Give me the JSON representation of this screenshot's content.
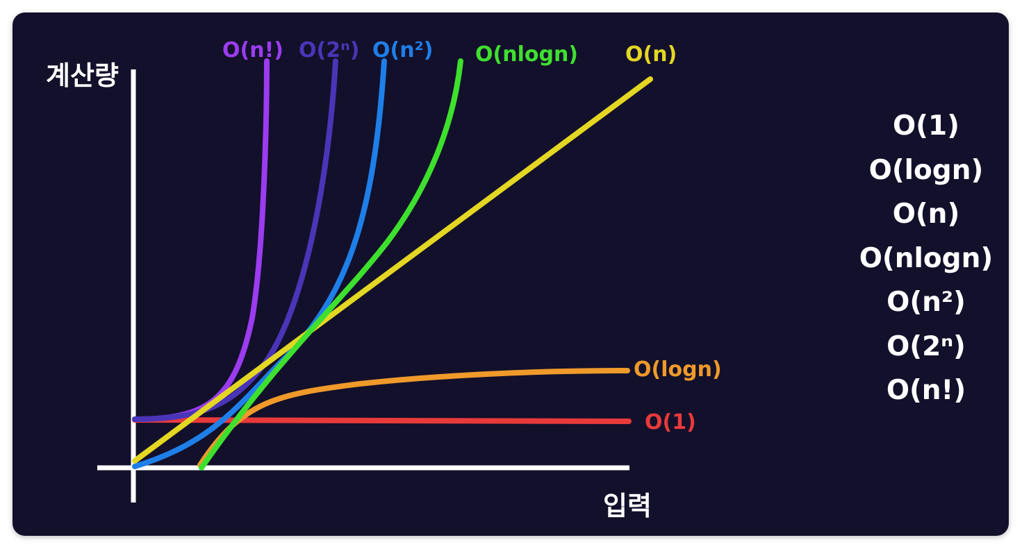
{
  "chart_data": {
    "type": "line",
    "title": "",
    "xlabel": "입력",
    "ylabel": "계산량",
    "grid": false,
    "legend": "none",
    "series": [
      {
        "name": "O(n!)",
        "color": "#9b3cf0",
        "label": "O(n!)"
      },
      {
        "name": "O(2ⁿ)",
        "color": "#4a35b8",
        "label": "O(2ⁿ)"
      },
      {
        "name": "O(n²)",
        "color": "#1f7fe8",
        "label": "O(n²)"
      },
      {
        "name": "O(nlogn)",
        "color": "#3ee02e",
        "label": "O(nlogn)"
      },
      {
        "name": "O(n)",
        "color": "#e3d724",
        "label": "O(n)"
      },
      {
        "name": "O(logn)",
        "color": "#ef9a2a",
        "label": "O(logn)"
      },
      {
        "name": "O(1)",
        "color": "#e83a3a",
        "label": "O(1)"
      }
    ]
  },
  "ranking": {
    "items": [
      "O(1)",
      "O(logn)",
      "O(n)",
      "O(nlogn)",
      "O(n²)",
      "O(2ⁿ)",
      "O(n!)"
    ]
  },
  "colors": {
    "background": "#13102b",
    "axis": "#ffffff",
    "text": "#ffffff"
  }
}
